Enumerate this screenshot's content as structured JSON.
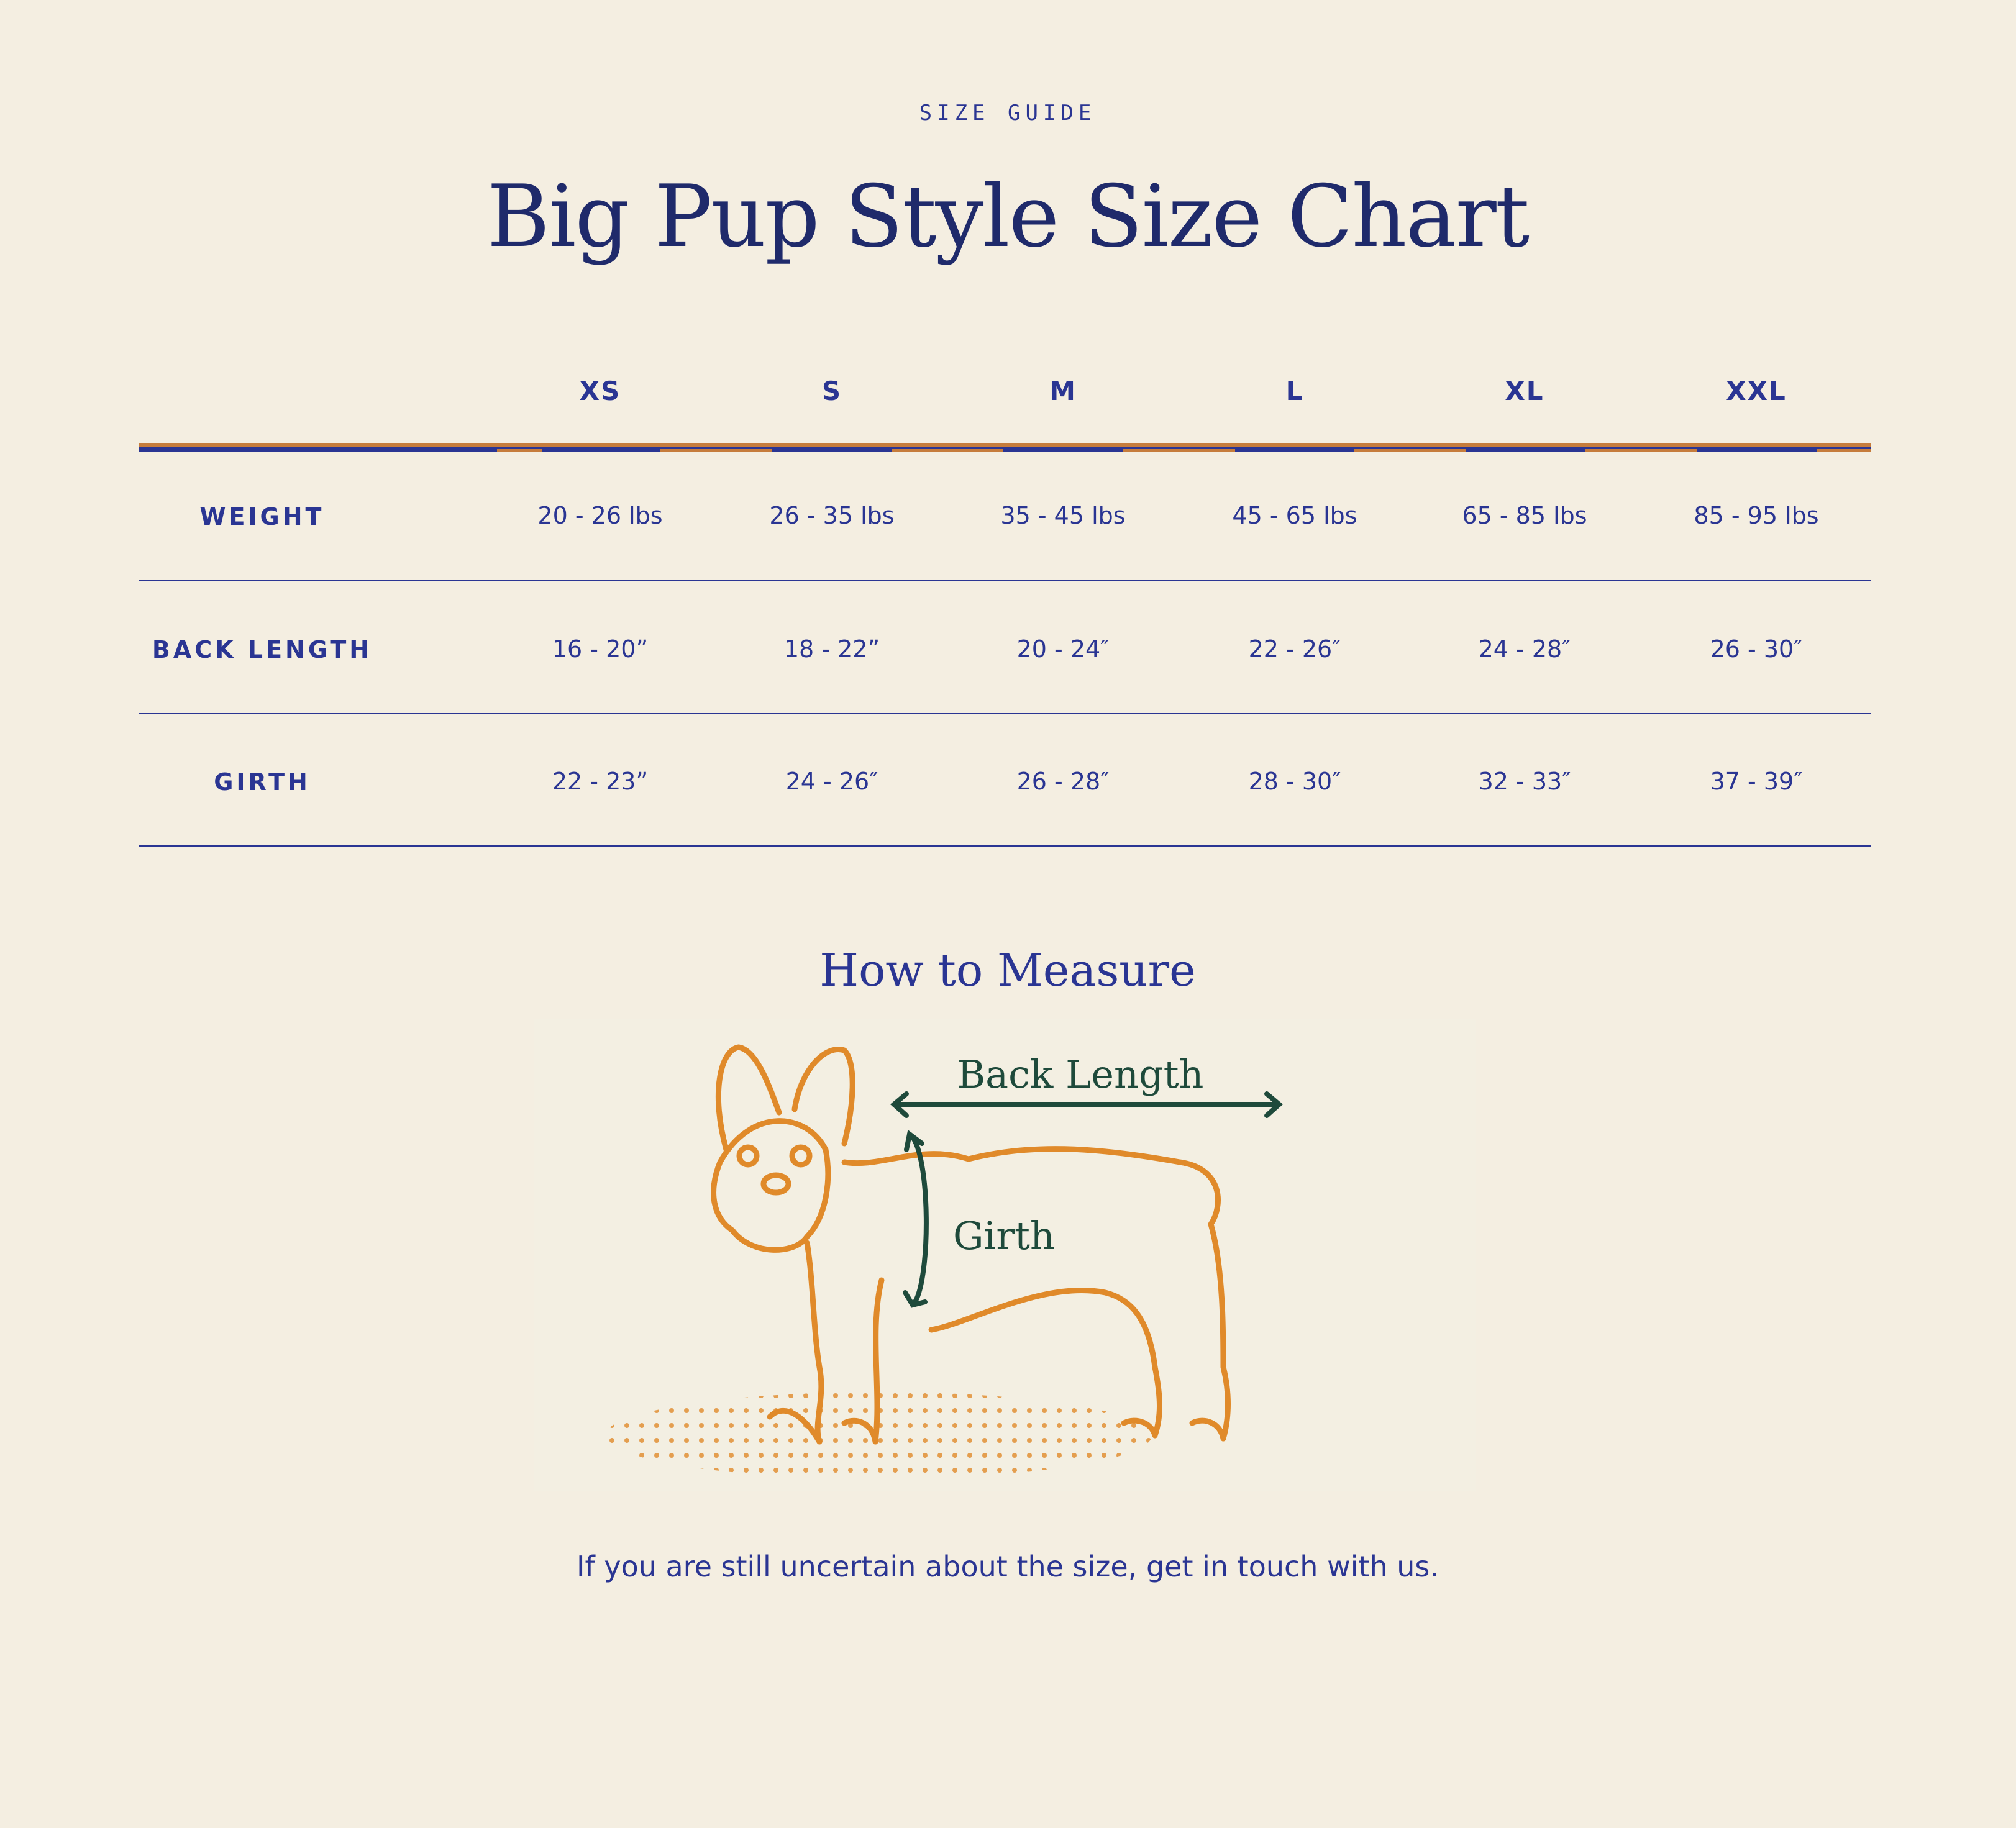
{
  "header": {
    "eyebrow": "SIZE GUIDE",
    "title": "Big Pup Style Size Chart"
  },
  "table": {
    "sizes": [
      "XS",
      "S",
      "M",
      "L",
      "XL",
      "XXL"
    ],
    "rows": [
      {
        "label": "WEIGHT",
        "values": [
          "20 - 26 lbs",
          "26 - 35 lbs",
          "35 - 45 lbs",
          "45 - 65 lbs",
          "65 - 85 lbs",
          "85 - 95 lbs"
        ]
      },
      {
        "label": "BACK LENGTH",
        "values": [
          "16 - 20”",
          "18 - 22”",
          "20 - 24″",
          "22 - 26″",
          "24 - 28″",
          "26 - 30″"
        ]
      },
      {
        "label": "GIRTH",
        "values": [
          "22 - 23”",
          "24 - 26″",
          "26 - 28″",
          "28 - 30″",
          "32 - 33″",
          "37 - 39″"
        ]
      }
    ]
  },
  "measure": {
    "heading": "How to Measure",
    "illustration": {
      "back_length_label": "Back Length",
      "girth_label": "Girth"
    }
  },
  "footer": {
    "note": "If you are still uncertain about the size, get in touch with us."
  },
  "colors": {
    "background": "#f4eee1",
    "navy": "#2a3593",
    "title": "#1f2a6b",
    "orange": "#c67c3c",
    "dog": "#e08a2a",
    "arrow_green": "#1e4a3b"
  }
}
